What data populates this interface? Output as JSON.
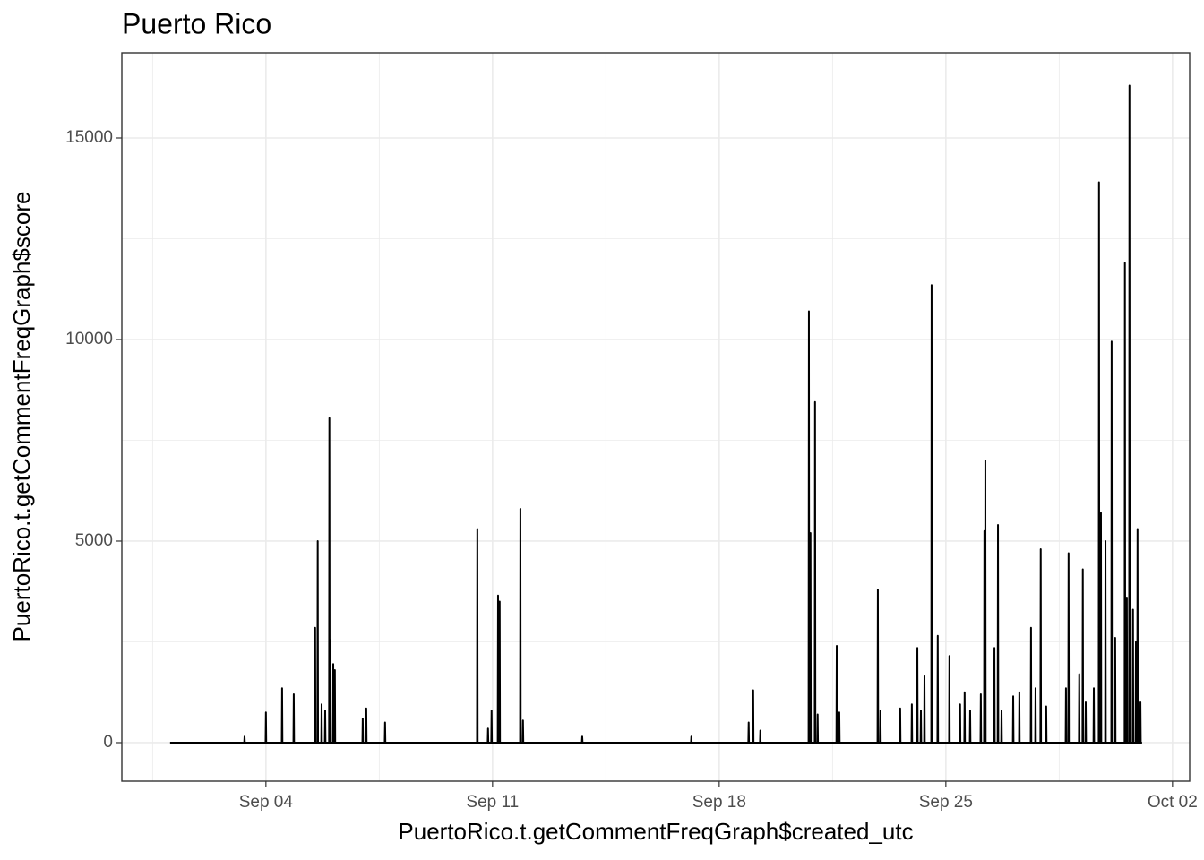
{
  "chart_data": {
    "type": "line",
    "title": "Puerto Rico",
    "x_label": "PuertoRico.t.getCommentFreqGraph$created_utc",
    "y_label": "PuertoRico.t.getCommentFreqGraph$score",
    "color": "#000000",
    "grid": true,
    "xlim": [
      -0.45,
      32.53
    ],
    "ylim": [
      -956,
      17111
    ],
    "xticks": [
      {
        "value": 4,
        "label": "Sep 04"
      },
      {
        "value": 11,
        "label": "Sep 11"
      },
      {
        "value": 18,
        "label": "Sep 18"
      },
      {
        "value": 25,
        "label": "Sep 25"
      },
      {
        "value": 32,
        "label": "Oct 02"
      }
    ],
    "minor_xticks": [
      0.5,
      7.5,
      14.5,
      21.5,
      28.5
    ],
    "yticks": [
      0,
      5000,
      10000,
      15000
    ],
    "minor_yticks": [
      2500,
      7500,
      12500
    ],
    "x": [
      1.04,
      3.33,
      3.34,
      3.35,
      3.99,
      4.0,
      4.01,
      4.49,
      4.5,
      4.51,
      4.85,
      4.86,
      4.87,
      5.51,
      5.52,
      5.53,
      5.59,
      5.6,
      5.61,
      5.71,
      5.72,
      5.73,
      5.82,
      5.83,
      5.84,
      5.95,
      5.96,
      5.97,
      5.98,
      5.99,
      6.0,
      6.07,
      6.08,
      6.09,
      6.12,
      6.13,
      6.14,
      6.98,
      6.99,
      7.0,
      7.09,
      7.1,
      7.11,
      7.67,
      7.68,
      7.69,
      10.52,
      10.53,
      10.54,
      10.85,
      10.86,
      10.87,
      10.96,
      10.97,
      10.98,
      11.16,
      11.17,
      11.18,
      11.21,
      11.22,
      11.23,
      11.85,
      11.86,
      11.87,
      11.93,
      11.94,
      11.95,
      13.76,
      13.77,
      13.78,
      17.13,
      17.14,
      17.15,
      18.9,
      18.91,
      18.92,
      19.04,
      19.05,
      19.06,
      19.26,
      19.27,
      19.28,
      20.76,
      20.77,
      20.78,
      20.81,
      20.82,
      20.83,
      20.95,
      20.96,
      20.97,
      21.03,
      21.04,
      21.05,
      21.62,
      21.63,
      21.64,
      21.7,
      21.71,
      21.72,
      22.89,
      22.9,
      22.91,
      22.97,
      22.98,
      22.99,
      23.58,
      23.59,
      23.6,
      23.94,
      23.95,
      23.96,
      24.11,
      24.12,
      24.13,
      24.22,
      24.23,
      24.24,
      24.33,
      24.34,
      24.35,
      24.55,
      24.56,
      24.57,
      24.74,
      24.75,
      24.76,
      25.1,
      25.11,
      25.12,
      25.43,
      25.44,
      25.45,
      25.57,
      25.58,
      25.59,
      25.74,
      25.75,
      25.76,
      26.07,
      26.08,
      26.09,
      26.18,
      26.19,
      26.2,
      26.21,
      26.22,
      26.23,
      26.49,
      26.5,
      26.51,
      26.6,
      26.61,
      26.62,
      26.71,
      26.72,
      26.73,
      27.07,
      27.08,
      27.09,
      27.26,
      27.27,
      27.28,
      27.62,
      27.63,
      27.64,
      27.76,
      27.77,
      27.78,
      27.92,
      27.93,
      27.94,
      28.09,
      28.1,
      28.11,
      28.7,
      28.71,
      28.72,
      28.78,
      28.79,
      28.8,
      29.11,
      29.12,
      29.13,
      29.22,
      29.23,
      29.24,
      29.31,
      29.32,
      29.33,
      29.56,
      29.57,
      29.58,
      29.72,
      29.73,
      29.74,
      29.78,
      29.79,
      29.8,
      29.92,
      29.93,
      29.94,
      30.11,
      30.12,
      30.13,
      30.22,
      30.23,
      30.24,
      30.52,
      30.53,
      30.54,
      30.58,
      30.59,
      30.6,
      30.66,
      30.67,
      30.68,
      30.77,
      30.78,
      30.79,
      30.86,
      30.87,
      30.88,
      30.91,
      30.92,
      30.93,
      31.0,
      31.01,
      31.02,
      31.06
    ],
    "values": [
      0,
      0,
      150,
      0,
      0,
      750,
      0,
      0,
      1350,
      0,
      0,
      1200,
      0,
      0,
      2850,
      0,
      0,
      5000,
      0,
      0,
      950,
      0,
      0,
      800,
      0,
      0,
      8050,
      0,
      0,
      2550,
      0,
      0,
      1950,
      0,
      0,
      1800,
      0,
      0,
      600,
      0,
      0,
      850,
      0,
      0,
      500,
      0,
      0,
      5300,
      0,
      0,
      350,
      0,
      0,
      800,
      0,
      0,
      3650,
      0,
      0,
      3500,
      0,
      0,
      5800,
      0,
      0,
      550,
      0,
      0,
      150,
      0,
      0,
      150,
      0,
      0,
      500,
      0,
      0,
      1300,
      0,
      0,
      300,
      0,
      0,
      10700,
      0,
      0,
      5200,
      0,
      0,
      8450,
      0,
      0,
      700,
      0,
      0,
      2400,
      0,
      0,
      750,
      0,
      0,
      3800,
      0,
      0,
      800,
      0,
      0,
      850,
      0,
      0,
      950,
      0,
      0,
      2350,
      0,
      0,
      800,
      0,
      0,
      1650,
      0,
      0,
      11350,
      0,
      0,
      2650,
      0,
      0,
      2150,
      0,
      0,
      950,
      0,
      0,
      1250,
      0,
      0,
      800,
      0,
      0,
      1200,
      0,
      0,
      5250,
      0,
      0,
      7000,
      0,
      0,
      2350,
      0,
      0,
      5400,
      0,
      0,
      800,
      0,
      0,
      1150,
      0,
      0,
      1250,
      0,
      0,
      2850,
      0,
      0,
      1350,
      0,
      0,
      4800,
      0,
      0,
      900,
      0,
      0,
      1350,
      0,
      0,
      4700,
      0,
      0,
      1700,
      0,
      0,
      4300,
      0,
      0,
      1000,
      0,
      0,
      1350,
      0,
      0,
      13900,
      0,
      0,
      5700,
      0,
      0,
      5000,
      0,
      0,
      9950,
      0,
      0,
      2600,
      0,
      0,
      11900,
      0,
      0,
      3600,
      0,
      0,
      16300,
      0,
      0,
      3300,
      0,
      0,
      2500,
      0,
      0,
      5300,
      0,
      0,
      1000,
      0,
      0
    ]
  }
}
